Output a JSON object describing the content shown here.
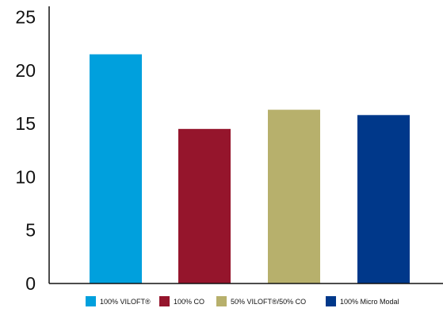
{
  "chart_data": {
    "type": "bar",
    "title": "",
    "xlabel": "",
    "ylabel": "",
    "ylim": [
      0,
      26
    ],
    "yticks": [
      "0",
      "5",
      "10",
      "15",
      "20",
      "25"
    ],
    "grid": false,
    "legend_position": "bottom",
    "categories": [
      "100% VILOFT®",
      "100% CO",
      "50% VILOFT®/50% CO",
      "100% Micro Modal"
    ],
    "values": [
      21.5,
      14.5,
      16.3,
      15.8
    ],
    "colors": [
      "#00a0dd",
      "#95152c",
      "#b7b06c",
      "#00388a"
    ]
  }
}
